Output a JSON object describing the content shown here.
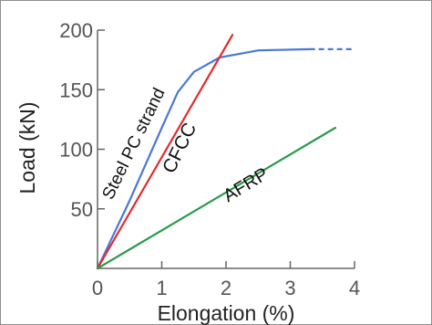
{
  "chart_data": {
    "type": "line",
    "title": "",
    "xlabel": "Elongation (%)",
    "ylabel": "Load (kN)",
    "xlim": [
      0,
      4
    ],
    "ylim": [
      0,
      200
    ],
    "x_ticks": [
      "0",
      "1",
      "2",
      "3",
      "4"
    ],
    "y_ticks": [
      "50",
      "100",
      "150",
      "200"
    ],
    "grid": false,
    "legend": "none",
    "series": [
      {
        "name": "Steel PC strand",
        "color": "#4a78d8",
        "x": [
          0,
          0.5,
          1.0,
          1.25,
          1.5,
          1.9,
          2.5,
          3.3
        ],
        "y": [
          0,
          57,
          118,
          148,
          165,
          177,
          183,
          184
        ],
        "extension": {
          "x": [
            3.3,
            4.0
          ],
          "y": [
            184,
            184
          ],
          "style": "dashed"
        }
      },
      {
        "name": "CFCC",
        "color": "#e52b2b",
        "x": [
          0,
          2.1
        ],
        "y": [
          0,
          196
        ]
      },
      {
        "name": "AFRP",
        "color": "#2a9a4a",
        "x": [
          0,
          3.7
        ],
        "y": [
          0,
          118
        ]
      }
    ]
  }
}
